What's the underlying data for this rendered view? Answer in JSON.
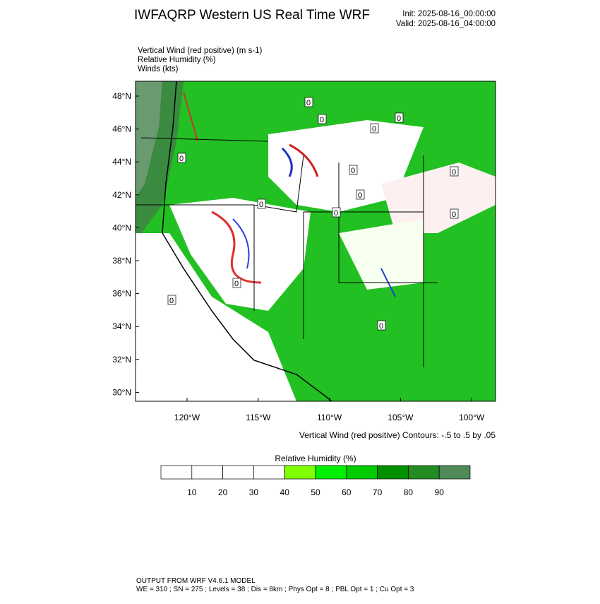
{
  "header": {
    "title": "IWFAQRP Western US Real Time WRF",
    "init": "Init: 2025-08-16_00:00:00",
    "valid": "Valid: 2025-08-16_04:00:00"
  },
  "fields": [
    "Vertical Wind (red positive)   (m s-1)",
    "Relative Humidity   (%)",
    "Winds   (kts)"
  ],
  "map": {
    "lat_labels": [
      "48°N",
      "46°N",
      "44°N",
      "42°N",
      "40°N",
      "38°N",
      "36°N",
      "34°N",
      "32°N",
      "30°N"
    ],
    "lon_labels": [
      "120°W",
      "115°W",
      "110°W",
      "105°W",
      "100°W"
    ],
    "contour_labels": [
      "0",
      "0",
      "0",
      "0",
      "0",
      "0",
      "0",
      "0",
      "0",
      "0",
      "0",
      "0",
      "0",
      "0"
    ],
    "contour_note": "Vertical Wind (red positive) Contours: -.5 to .5 by .05"
  },
  "colorbar": {
    "title": "Relative Humidity  (%)",
    "colors": [
      "#ffffff",
      "#ffffff",
      "#ffffff",
      "#ffffff",
      "#80ff00",
      "#00f000",
      "#00cc00",
      "#009000",
      "#228b22",
      "#508a58"
    ],
    "labels": [
      "10",
      "20",
      "30",
      "40",
      "50",
      "60",
      "70",
      "80",
      "90"
    ]
  },
  "footer": {
    "line1": "OUTPUT FROM WRF V4.6.1 MODEL",
    "line2": "WE = 310 ; SN = 275 ; Levels = 38 ; Dis = 8km ; Phys Opt = 8 ; PBL Opt = 1 ; Cu Opt = 3"
  }
}
